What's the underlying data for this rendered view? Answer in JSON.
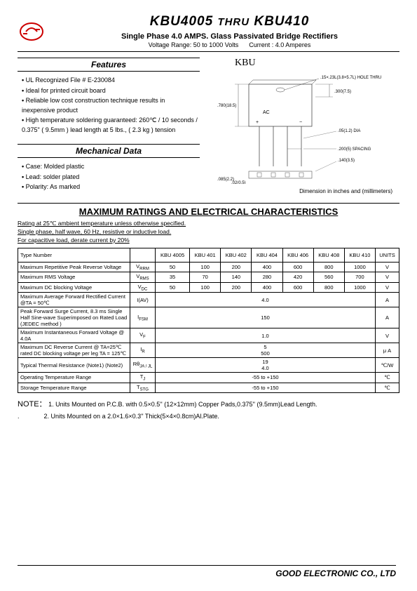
{
  "header": {
    "title_a": "KBU4005",
    "title_mid": "THRU",
    "title_b": "KBU410",
    "subtitle": "Single Phase 4.0 AMPS.   Glass Passivated Bridge Rectifiers",
    "voltage_range": "Voltage Range:  50 to 1000 Volts",
    "current": "Current : 4.0 Amperes"
  },
  "features": {
    "title": "Features",
    "items": [
      "UL Recognized File # E-230084",
      "Ideal for printed circuit board",
      "Reliable low cost construction technique results in inexpensive product",
      "High temperature soldering guaranteed: 260℃  / 10 seconds / 0.375\" ( 9.5mm ) lead length at 5 lbs., ( 2.3 kg ) tension"
    ]
  },
  "mechanical": {
    "title": "Mechanical Data",
    "items": [
      "Case: Molded plastic",
      "Lead: solder plated",
      "Polarity: As marked"
    ]
  },
  "drawing": {
    "label": "KBU",
    "dim_note": "Dimension in inches and (millimeters)",
    "annotations": {
      "hole": ".15×.23L(3.8×5.7L) HOLE THRU",
      "d1": ".300(7.5)",
      "d2": ".780(18.5)",
      "ac": "AC",
      "d3": ".05(1.2) DIA",
      "d4": ".200(5) SPACING",
      "d5": ".140(3.5)",
      "d6": ".085(2.2)",
      "d7": ".02(0.5)"
    }
  },
  "max_ratings": {
    "title": "MAXIMUM RATINGS AND ELECTRICAL CHARACTERISTICS",
    "notes": [
      "Rating at 25℃  ambient temperature unless otherwise specified.",
      "Single phase, half wave, 60 Hz, resistive or inductive load.",
      "For capacitive load, derate current by 20%"
    ],
    "type_header": "Type Number",
    "columns": [
      "KBU 4005",
      "KBU 401",
      "KBU 402",
      "KBU 404",
      "KBU 406",
      "KBU 408",
      "KBU 410"
    ],
    "units_header": "UNITS",
    "rows": [
      {
        "param": "Maximum Repetitive Peak Reverse Voltage",
        "symbol": "V",
        "sub": "RRM",
        "vals": [
          "50",
          "100",
          "200",
          "400",
          "600",
          "800",
          "1000"
        ],
        "unit": "V"
      },
      {
        "param": "Maximum RMS Voltage",
        "symbol": "V",
        "sub": "RMS",
        "vals": [
          "35",
          "70",
          "140",
          "280",
          "420",
          "560",
          "700"
        ],
        "unit": "V"
      },
      {
        "param": "Maximum DC blocking Voltage",
        "symbol": "V",
        "sub": "DC",
        "vals": [
          "50",
          "100",
          "200",
          "400",
          "600",
          "800",
          "1000"
        ],
        "unit": "V"
      },
      {
        "param": "Maximum Average Forward Rectified Current @TA = 50℃",
        "symbol": "I(AV)",
        "sub": "",
        "span": "4.0",
        "unit": "A"
      },
      {
        "param": "Peak Forward Surge Current, 8.3 ms Single Half Sine-wave Superimposed on Rated Load (JEDEC method )",
        "symbol": "I",
        "sub": "FSM",
        "span": "150",
        "unit": "A"
      },
      {
        "param": "Maximum Instantaneous Forward Voltage @ 4.0A",
        "symbol": "V",
        "sub": "F",
        "span": "1.0",
        "unit": "V"
      },
      {
        "param": "Maximum DC Reverse Current @ TA=25℃ rated DC blocking voltage per leg TA = 125℃",
        "symbol": "I",
        "sub": "R",
        "span2": [
          "5",
          "500"
        ],
        "unit": "μ A"
      },
      {
        "param": "Typical Thermal Resistance (Note1) (Note2)",
        "symbol": "Rθ",
        "sub": "JA / JL",
        "span2": [
          "19",
          "4.0"
        ],
        "unit": "℃/W"
      },
      {
        "param": "Operating Temperature Range",
        "symbol": "T",
        "sub": "J",
        "span": "-55 to +150",
        "unit": "℃"
      },
      {
        "param": "Storage Temperature Range",
        "symbol": "T",
        "sub": "STG",
        "span": "-55 to +150",
        "unit": "℃"
      }
    ]
  },
  "notes": {
    "label": "NOTE：",
    "n1": "1. Units Mounted on P.C.B. with 0.5×0.5''   (12×12mm)  Copper Pads,0.375''   (9.5mm)Lead Length.",
    "n2": "2. Units Mounted on a 2.0×1.6×0.3''   Thick(5×4×0.8cm)Al.Plate."
  },
  "footer": "GOOD ELECTRONIC CO., LTD"
}
